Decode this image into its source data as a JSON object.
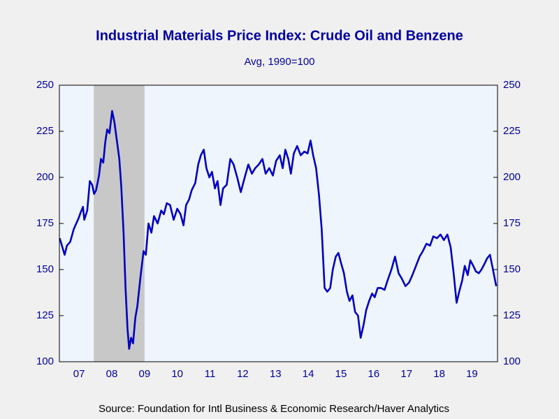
{
  "chart_data": {
    "type": "line",
    "title": "Industrial Materials Price Index: Crude Oil and Benzene",
    "subtitle": "Avg, 1990=100",
    "source": "Source:  Foundation for Intl Business & Economic Research/Haver Analytics",
    "x": [
      2006.91,
      2007.06,
      2007.13,
      2007.23,
      2007.34,
      2007.49,
      2007.55,
      2007.62,
      2007.66,
      2007.75,
      2007.83,
      2007.9,
      2007.96,
      2008.02,
      2008.11,
      2008.17,
      2008.24,
      2008.3,
      2008.36,
      2008.43,
      2008.51,
      2008.58,
      2008.64,
      2008.73,
      2008.79,
      2008.86,
      2008.92,
      2008.98,
      2009.03,
      2009.09,
      2009.15,
      2009.22,
      2009.28,
      2009.37,
      2009.47,
      2009.54,
      2009.62,
      2009.71,
      2009.79,
      2009.9,
      2010.01,
      2010.09,
      2010.18,
      2010.28,
      2010.39,
      2010.5,
      2010.6,
      2010.69,
      2010.77,
      2010.86,
      2010.94,
      2011.05,
      2011.14,
      2011.22,
      2011.31,
      2011.39,
      2011.48,
      2011.56,
      2011.65,
      2011.73,
      2011.82,
      2011.9,
      2012.01,
      2012.12,
      2012.22,
      2012.33,
      2012.44,
      2012.56,
      2012.67,
      2012.78,
      2012.88,
      2012.99,
      2013.1,
      2013.2,
      2013.31,
      2013.42,
      2013.52,
      2013.63,
      2013.72,
      2013.8,
      2013.89,
      2013.97,
      2014.06,
      2014.16,
      2014.27,
      2014.38,
      2014.48,
      2014.57,
      2014.65,
      2014.74,
      2014.83,
      2014.91,
      2015.0,
      2015.08,
      2015.17,
      2015.25,
      2015.34,
      2015.42,
      2015.51,
      2015.59,
      2015.68,
      2015.76,
      2015.85,
      2015.93,
      2016.02,
      2016.1,
      2016.19,
      2016.27,
      2016.36,
      2016.45,
      2016.53,
      2016.62,
      2016.72,
      2016.83,
      2016.94,
      2017.04,
      2017.15,
      2017.26,
      2017.36,
      2017.47,
      2017.58,
      2017.68,
      2017.79,
      2017.9,
      2018.0,
      2018.11,
      2018.22,
      2018.32,
      2018.43,
      2018.54,
      2018.64,
      2018.75,
      2018.85,
      2018.94,
      2019.03,
      2019.11,
      2019.2,
      2019.28,
      2019.37,
      2019.45,
      2019.54,
      2019.62,
      2019.71,
      2019.79,
      2019.88,
      2019.96,
      2020.05,
      2020.13,
      2020.24
    ],
    "series": [
      {
        "color": "#0000c0",
        "values": [
          167,
          158,
          163,
          165,
          172,
          178,
          181,
          184,
          177,
          182,
          198,
          196,
          191,
          193,
          201,
          210,
          208,
          219,
          226,
          224,
          236,
          230,
          222,
          210,
          195,
          170,
          140,
          118,
          107,
          113,
          110,
          124,
          130,
          145,
          160,
          158,
          175,
          170,
          179,
          175,
          182,
          180,
          186,
          185,
          177,
          183,
          180,
          174,
          185,
          188,
          193,
          197,
          207,
          212,
          215,
          205,
          200,
          203,
          194,
          198,
          185,
          194,
          196,
          210,
          207,
          200,
          192,
          200,
          207,
          202,
          205,
          207,
          210,
          202,
          205,
          201,
          209,
          212,
          205,
          215,
          210,
          202,
          213,
          217,
          212,
          214,
          213,
          220,
          212,
          205,
          190,
          172,
          140,
          138,
          140,
          150,
          157,
          159,
          153,
          148,
          138,
          133,
          136,
          127,
          125,
          113,
          120,
          128,
          133,
          137,
          135,
          140,
          140,
          139,
          145,
          150,
          157,
          148,
          145,
          141,
          143,
          147,
          152,
          157,
          160,
          164,
          163,
          168,
          167,
          169,
          166,
          169,
          162,
          148,
          132,
          138,
          144,
          152,
          147,
          155,
          152,
          149,
          148,
          150,
          153,
          156,
          158,
          151,
          141
        ]
      }
    ],
    "xlim": [
      2006.9,
      2020.28
    ],
    "xticks": [
      {
        "value": 2007.5,
        "label": "07"
      },
      {
        "value": 2008.5,
        "label": "08"
      },
      {
        "value": 2009.5,
        "label": "09"
      },
      {
        "value": 2010.5,
        "label": "10"
      },
      {
        "value": 2011.5,
        "label": "11"
      },
      {
        "value": 2012.5,
        "label": "12"
      },
      {
        "value": 2013.5,
        "label": "13"
      },
      {
        "value": 2014.5,
        "label": "14"
      },
      {
        "value": 2015.5,
        "label": "15"
      },
      {
        "value": 2016.5,
        "label": "16"
      },
      {
        "value": 2017.5,
        "label": "17"
      },
      {
        "value": 2018.5,
        "label": "18"
      },
      {
        "value": 2019.5,
        "label": "19"
      }
    ],
    "ylim": [
      100,
      250
    ],
    "yticks": [
      100,
      125,
      150,
      175,
      200,
      225,
      250
    ],
    "y2lim": [
      100,
      250
    ],
    "y2ticks": [
      100,
      125,
      150,
      175,
      200,
      225,
      250
    ],
    "shading": [
      2007.95,
      2009.5
    ],
    "shading_color": "#c8c8c8"
  }
}
